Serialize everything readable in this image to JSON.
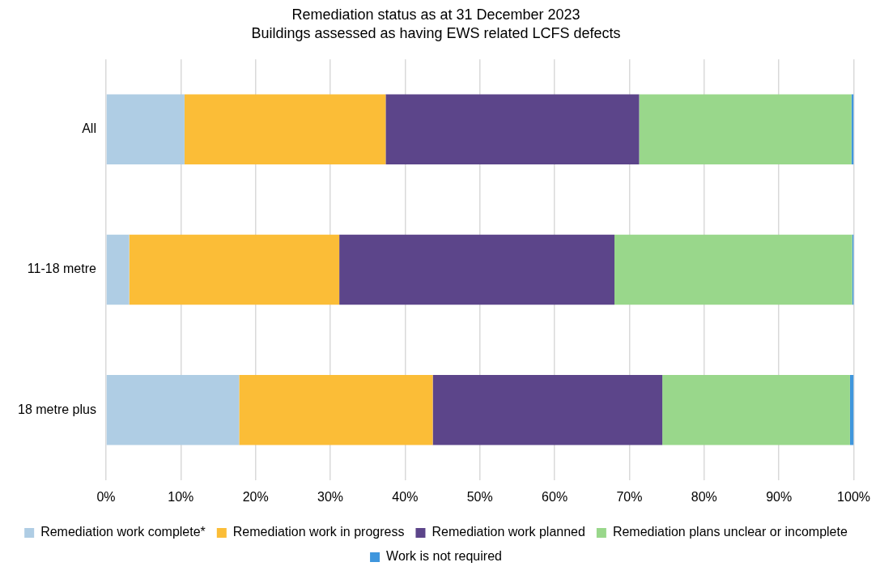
{
  "chart_data": {
    "type": "bar",
    "orientation": "horizontal",
    "stacked": true,
    "title": "Remediation status as at 31 December 2023",
    "subtitle": "Buildings assessed as having EWS related LCFS defects",
    "categories": [
      "All",
      "11-18 metre",
      "18 metre plus"
    ],
    "series": [
      {
        "name": "Remediation work complete*",
        "color": "#afcde4",
        "values": [
          10.5,
          3.1,
          17.8
        ]
      },
      {
        "name": "Remediation work in progress",
        "color": "#fbbd37",
        "values": [
          26.9,
          28.1,
          25.9
        ]
      },
      {
        "name": "Remediation work planned",
        "color": "#5c458a",
        "values": [
          33.9,
          36.8,
          30.7
        ]
      },
      {
        "name": "Remediation plans unclear or incomplete",
        "color": "#99d78b",
        "values": [
          28.4,
          31.8,
          25.1
        ]
      },
      {
        "name": "Work is not required",
        "color": "#3f96dd",
        "values": [
          0.3,
          0.2,
          0.5
        ]
      }
    ],
    "xlim": [
      0,
      100
    ],
    "xticks": [
      {
        "value": 0,
        "label": "0%"
      },
      {
        "value": 10,
        "label": "10%"
      },
      {
        "value": 20,
        "label": "20%"
      },
      {
        "value": 30,
        "label": "30%"
      },
      {
        "value": 40,
        "label": "40%"
      },
      {
        "value": 50,
        "label": "50%"
      },
      {
        "value": 60,
        "label": "60%"
      },
      {
        "value": 70,
        "label": "70%"
      },
      {
        "value": 80,
        "label": "80%"
      },
      {
        "value": 90,
        "label": "90%"
      },
      {
        "value": 100,
        "label": "100%"
      }
    ],
    "grid": "x",
    "legend": "bottom"
  }
}
